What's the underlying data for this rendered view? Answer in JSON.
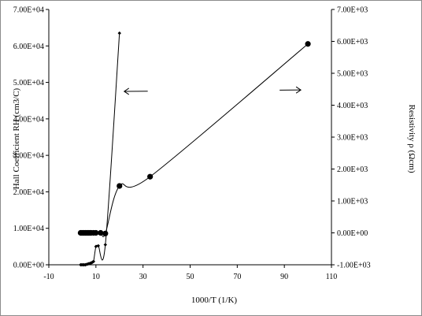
{
  "chart_data": {
    "type": "scatter",
    "title": "",
    "xlabel": "1000/T (1/K)",
    "ylabel_left": "Hall Coefficient RH (cm3/C)",
    "ylabel_right": "Resistivity ρ (Ωcm)",
    "x_ticks": [
      -10,
      10,
      30,
      50,
      70,
      90,
      110
    ],
    "x_tick_labels": [
      "-10",
      "10",
      "30",
      "50",
      "70",
      "90",
      "110"
    ],
    "xlim": [
      -10,
      110
    ],
    "ylim_left": [
      0,
      70000
    ],
    "y_left_ticks": [
      0,
      10000,
      20000,
      30000,
      40000,
      50000,
      60000,
      70000
    ],
    "y_left_tick_labels": [
      "0.00E+00",
      "1.00E+04",
      "2.00E+04",
      "3.00E+04",
      "4.00E+04",
      "5.00E+04",
      "6.00E+04",
      "7.00E+04"
    ],
    "ylim_right": [
      -1000,
      7000
    ],
    "y_right_ticks": [
      -1000,
      0,
      1000,
      2000,
      3000,
      4000,
      5000,
      6000,
      7000
    ],
    "y_right_tick_labels": [
      "-1.00E+03",
      "0.00E+00",
      "1.00E+03",
      "2.00E+03",
      "3.00E+03",
      "4.00E+03",
      "5.00E+03",
      "6.00E+03",
      "7.00E+03"
    ],
    "grid": false,
    "legend": "none",
    "series": [
      {
        "axis": "left",
        "marker": "small-diamond",
        "x": [
          3.5,
          4.0,
          4.5,
          5.0,
          5.5,
          6.0,
          6.5,
          7.0,
          7.5,
          8.0,
          8.5,
          9.0,
          10.0,
          11.0,
          14.0,
          20.0
        ],
        "y": [
          0,
          0,
          0,
          0,
          0,
          100,
          200,
          300,
          400,
          500,
          700,
          900,
          5000,
          5200,
          5500,
          63500
        ]
      },
      {
        "axis": "right",
        "marker": "large-dot",
        "x": [
          3.5,
          4.0,
          4.5,
          5.0,
          5.5,
          6.0,
          6.5,
          7.0,
          7.5,
          8.0,
          9.0,
          10.0,
          12.0,
          14.0,
          20.0,
          33.0,
          100.0
        ],
        "y": [
          0,
          0,
          0,
          0,
          0,
          0,
          0,
          0,
          0,
          0,
          0,
          0,
          0,
          -20,
          1470,
          1760,
          5920
        ]
      }
    ],
    "annotations": [
      {
        "type": "arrow",
        "direction": "left",
        "points_to": "left-axis",
        "x_from": 32,
        "x_to": 22,
        "y_left": 47800
      },
      {
        "type": "arrow",
        "direction": "right",
        "points_to": "right-axis",
        "x_from": 88,
        "x_to": 97,
        "y_left": 48100
      }
    ]
  }
}
